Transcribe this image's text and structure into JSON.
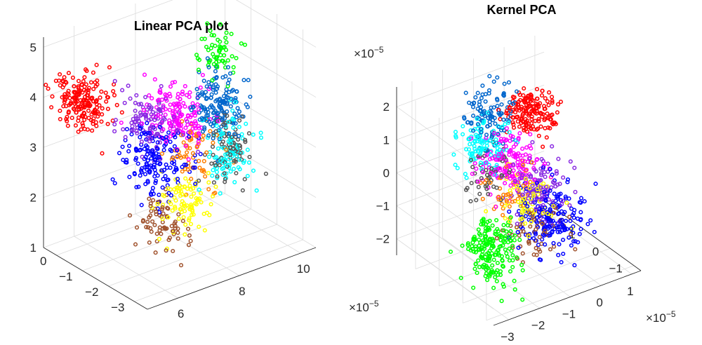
{
  "chart_data": [
    {
      "type": "scatter",
      "title": "Linear PCA plot",
      "projection": "3d",
      "grid": true,
      "xlim": [
        -3.5,
        0.5
      ],
      "ylim": [
        5,
        10.5
      ],
      "zlim": [
        1,
        5.2
      ],
      "xticks": [
        0,
        -1,
        -2,
        -3
      ],
      "yticks": [
        6,
        8,
        10
      ],
      "zticks": [
        5,
        4,
        3,
        2,
        1
      ],
      "x_exponent": "",
      "y_exponent": "",
      "z_exponent": "",
      "series": [
        {
          "color": "#ff0000",
          "center": [
            -0.6,
            5.3,
            4.2
          ],
          "spread": [
            0.75,
            0.5,
            0.4
          ],
          "count": 190
        },
        {
          "color": "#a0522d",
          "center": [
            -2.2,
            6.6,
            1.9
          ],
          "spread": [
            0.6,
            0.5,
            0.5
          ],
          "count": 70
        },
        {
          "color": "#ffff00",
          "center": [
            -2.4,
            7.2,
            2.3
          ],
          "spread": [
            0.5,
            0.55,
            0.4
          ],
          "count": 90
        },
        {
          "color": "#0000ff",
          "center": [
            -1.6,
            6.9,
            3.0
          ],
          "spread": [
            0.8,
            0.7,
            0.65
          ],
          "count": 170
        },
        {
          "color": "#8a2be2",
          "center": [
            -1.3,
            6.9,
            3.7
          ],
          "spread": [
            0.7,
            0.6,
            0.45
          ],
          "count": 110
        },
        {
          "color": "#ff00ff",
          "center": [
            -1.4,
            7.8,
            3.6
          ],
          "spread": [
            0.75,
            0.6,
            0.5
          ],
          "count": 150
        },
        {
          "color": "#00ffff",
          "center": [
            -2.6,
            8.4,
            3.2
          ],
          "spread": [
            0.5,
            0.5,
            0.6
          ],
          "count": 100
        },
        {
          "color": "#0066cc",
          "center": [
            -2.0,
            8.6,
            3.8
          ],
          "spread": [
            0.6,
            0.5,
            0.6
          ],
          "count": 150
        },
        {
          "color": "#ff7f00",
          "center": [
            -2.2,
            7.6,
            3.1
          ],
          "spread": [
            0.6,
            0.6,
            0.5
          ],
          "count": 60
        },
        {
          "color": "#00ff00",
          "center": [
            -1.2,
            9.3,
            4.4
          ],
          "spread": [
            0.5,
            0.4,
            0.4
          ],
          "count": 60
        },
        {
          "color": "#555555",
          "center": [
            -2.4,
            8.6,
            3.0
          ],
          "spread": [
            0.5,
            0.5,
            0.6
          ],
          "count": 80
        }
      ]
    },
    {
      "type": "scatter",
      "title": "Kernel PCA",
      "projection": "3d",
      "grid": true,
      "xlim": [
        -3.5,
        1.3
      ],
      "ylim": [
        -1.3,
        2.8
      ],
      "zlim": [
        -2.5,
        2.6
      ],
      "xticks": [
        -3,
        -2,
        -1,
        0,
        1
      ],
      "yticks": [
        -1,
        0,
        1,
        2
      ],
      "zticks": [
        2,
        1,
        0,
        -1,
        -2
      ],
      "x_exponent": "×10-5",
      "y_exponent": "×10-5",
      "z_exponent": "×10-5",
      "series": [
        {
          "color": "#ff0000",
          "center": [
            0.5,
            2.3,
            0.7
          ],
          "spread": [
            0.6,
            0.5,
            0.45
          ],
          "count": 170
        },
        {
          "color": "#00ff00",
          "center": [
            -2.5,
            0.1,
            -1.3
          ],
          "spread": [
            0.55,
            0.6,
            0.8
          ],
          "count": 190
        },
        {
          "color": "#0000ff",
          "center": [
            -0.8,
            -0.2,
            -0.7
          ],
          "spread": [
            0.8,
            0.7,
            0.8
          ],
          "count": 190
        },
        {
          "color": "#0066cc",
          "center": [
            -1.0,
            2.1,
            1.3
          ],
          "spread": [
            0.6,
            0.5,
            0.7
          ],
          "count": 110
        },
        {
          "color": "#00ffff",
          "center": [
            -1.4,
            1.8,
            0.6
          ],
          "spread": [
            0.6,
            0.5,
            0.6
          ],
          "count": 110
        },
        {
          "color": "#ff00ff",
          "center": [
            -0.8,
            1.4,
            0.1
          ],
          "spread": [
            0.7,
            0.6,
            0.7
          ],
          "count": 150
        },
        {
          "color": "#8a2be2",
          "center": [
            -0.3,
            0.9,
            -0.5
          ],
          "spread": [
            0.7,
            0.6,
            0.6
          ],
          "count": 110
        },
        {
          "color": "#ffff00",
          "center": [
            -1.2,
            0.3,
            -0.4
          ],
          "spread": [
            0.6,
            0.6,
            0.7
          ],
          "count": 70
        },
        {
          "color": "#a0522d",
          "center": [
            -1.3,
            -0.2,
            -1.0
          ],
          "spread": [
            0.6,
            0.6,
            0.7
          ],
          "count": 60
        },
        {
          "color": "#ff7f00",
          "center": [
            -1.4,
            0.8,
            -0.2
          ],
          "spread": [
            0.6,
            0.6,
            0.6
          ],
          "count": 50
        },
        {
          "color": "#555555",
          "center": [
            -1.5,
            1.3,
            0.0
          ],
          "spread": [
            0.5,
            0.5,
            0.6
          ],
          "count": 50
        }
      ]
    }
  ]
}
